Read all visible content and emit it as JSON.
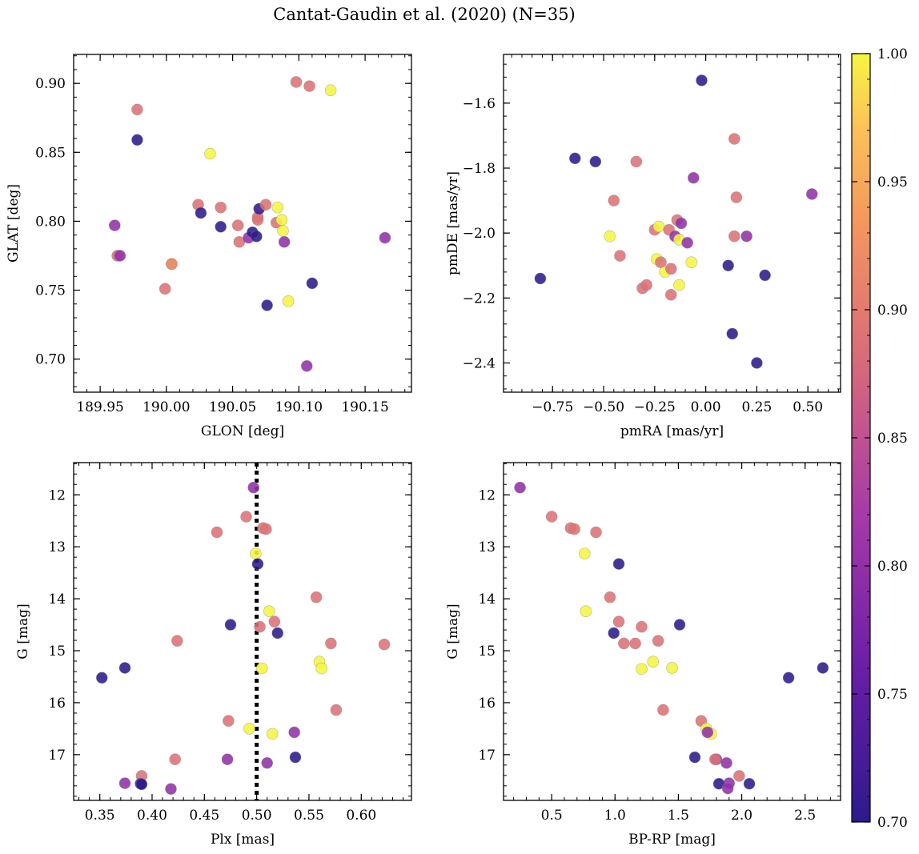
{
  "figure": {
    "title": "Cantat-Gaudin et al. (2020) (N=35)"
  },
  "colorbar": {
    "range": [
      0.7,
      1.0
    ],
    "ticks": [
      0.7,
      0.75,
      0.8,
      0.85,
      0.9,
      0.95,
      1.0
    ],
    "tick_labels": [
      "0.70",
      "0.75",
      "0.80",
      "0.85",
      "0.90",
      "0.95",
      "1.00"
    ],
    "colormap": "plasma"
  },
  "chart_data": [
    {
      "type": "scatter",
      "id": "p1",
      "xlabel": "GLON [deg]",
      "ylabel": "GLAT [deg]",
      "xlim": [
        189.93,
        190.185
      ],
      "ylim": [
        0.676,
        0.921
      ],
      "invert_y": false,
      "xticks": [
        189.95,
        190.0,
        190.05,
        190.1,
        190.15
      ],
      "xtick_labels": [
        "189.95",
        "190.00",
        "190.05",
        "190.10",
        "190.15"
      ],
      "yticks": [
        0.7,
        0.75,
        0.8,
        0.85,
        0.9
      ],
      "ytick_labels": [
        "0.70",
        "0.75",
        "0.80",
        "0.85",
        "0.90"
      ],
      "points": [
        {
          "x": 189.978,
          "y": 0.859,
          "c": 0.7
        },
        {
          "x": 189.978,
          "y": 0.881,
          "c": 0.89
        },
        {
          "x": 189.961,
          "y": 0.797,
          "c": 0.8
        },
        {
          "x": 189.963,
          "y": 0.775,
          "c": 0.88
        },
        {
          "x": 189.965,
          "y": 0.775,
          "c": 0.8
        },
        {
          "x": 189.999,
          "y": 0.751,
          "c": 0.89
        },
        {
          "x": 190.004,
          "y": 0.769,
          "c": 0.99
        },
        {
          "x": 190.004,
          "y": 0.769,
          "c": 0.91
        },
        {
          "x": 190.024,
          "y": 0.812,
          "c": 0.89
        },
        {
          "x": 190.026,
          "y": 0.806,
          "c": 0.7
        },
        {
          "x": 190.033,
          "y": 0.849,
          "c": 1.0
        },
        {
          "x": 190.041,
          "y": 0.796,
          "c": 0.7
        },
        {
          "x": 190.041,
          "y": 0.81,
          "c": 0.89
        },
        {
          "x": 190.054,
          "y": 0.797,
          "c": 0.89
        },
        {
          "x": 190.055,
          "y": 0.785,
          "c": 0.89
        },
        {
          "x": 190.062,
          "y": 0.788,
          "c": 0.8
        },
        {
          "x": 190.065,
          "y": 0.792,
          "c": 0.7
        },
        {
          "x": 190.068,
          "y": 0.789,
          "c": 0.7
        },
        {
          "x": 190.069,
          "y": 0.803,
          "c": 0.89
        },
        {
          "x": 190.069,
          "y": 0.801,
          "c": 0.89
        },
        {
          "x": 190.07,
          "y": 0.809,
          "c": 0.7
        },
        {
          "x": 190.075,
          "y": 0.812,
          "c": 0.89
        },
        {
          "x": 190.076,
          "y": 0.739,
          "c": 0.7
        },
        {
          "x": 190.083,
          "y": 0.799,
          "c": 0.89
        },
        {
          "x": 190.084,
          "y": 0.81,
          "c": 1.0
        },
        {
          "x": 190.087,
          "y": 0.801,
          "c": 1.0
        },
        {
          "x": 190.088,
          "y": 0.793,
          "c": 1.0
        },
        {
          "x": 190.089,
          "y": 0.785,
          "c": 0.8
        },
        {
          "x": 190.092,
          "y": 0.742,
          "c": 1.0
        },
        {
          "x": 190.098,
          "y": 0.901,
          "c": 0.89
        },
        {
          "x": 190.106,
          "y": 0.695,
          "c": 0.8
        },
        {
          "x": 190.108,
          "y": 0.898,
          "c": 0.89
        },
        {
          "x": 190.11,
          "y": 0.755,
          "c": 0.7
        },
        {
          "x": 190.124,
          "y": 0.895,
          "c": 1.0
        },
        {
          "x": 190.165,
          "y": 0.788,
          "c": 0.8
        }
      ]
    },
    {
      "type": "scatter",
      "id": "p2",
      "xlabel": "pmRA [mas/yr]",
      "ylabel": "pmDE [mas/yr]",
      "xlim": [
        -0.99,
        0.66
      ],
      "ylim": [
        -2.49,
        -1.45
      ],
      "invert_y": false,
      "xticks": [
        -0.75,
        -0.5,
        -0.25,
        0.0,
        0.25,
        0.5
      ],
      "xtick_labels": [
        "−0.75",
        "−0.50",
        "−0.25",
        "0.00",
        "0.25",
        "0.50"
      ],
      "yticks": [
        -2.4,
        -2.2,
        -2.0,
        -1.8,
        -1.6
      ],
      "ytick_labels": [
        "−2.4",
        "−2.2",
        "−2.0",
        "−1.8",
        "−1.6"
      ],
      "points": [
        {
          "x": -0.02,
          "y": -1.53,
          "c": 0.7
        },
        {
          "x": -0.64,
          "y": -1.77,
          "c": 0.7
        },
        {
          "x": -0.54,
          "y": -1.78,
          "c": 0.7
        },
        {
          "x": -0.34,
          "y": -1.78,
          "c": 0.89
        },
        {
          "x": 0.14,
          "y": -1.71,
          "c": 0.89
        },
        {
          "x": -0.06,
          "y": -1.83,
          "c": 0.8
        },
        {
          "x": 0.15,
          "y": -1.89,
          "c": 0.89
        },
        {
          "x": 0.52,
          "y": -1.88,
          "c": 0.8
        },
        {
          "x": -0.45,
          "y": -1.9,
          "c": 0.89
        },
        {
          "x": -0.81,
          "y": -2.14,
          "c": 0.7
        },
        {
          "x": -0.47,
          "y": -2.01,
          "c": 1.0
        },
        {
          "x": -0.42,
          "y": -2.07,
          "c": 0.89
        },
        {
          "x": -0.25,
          "y": -1.99,
          "c": 0.89
        },
        {
          "x": -0.23,
          "y": -1.98,
          "c": 1.0
        },
        {
          "x": -0.18,
          "y": -1.99,
          "c": 0.89
        },
        {
          "x": -0.14,
          "y": -1.96,
          "c": 0.89
        },
        {
          "x": -0.12,
          "y": -1.97,
          "c": 0.8
        },
        {
          "x": -0.15,
          "y": -2.01,
          "c": 0.8
        },
        {
          "x": -0.13,
          "y": -2.02,
          "c": 1.0
        },
        {
          "x": -0.09,
          "y": -2.03,
          "c": 0.8
        },
        {
          "x": 0.14,
          "y": -2.01,
          "c": 0.89
        },
        {
          "x": 0.2,
          "y": -2.01,
          "c": 0.8
        },
        {
          "x": -0.24,
          "y": -2.08,
          "c": 1.0
        },
        {
          "x": -0.22,
          "y": -2.09,
          "c": 0.89
        },
        {
          "x": -0.2,
          "y": -2.12,
          "c": 1.0
        },
        {
          "x": -0.17,
          "y": -2.11,
          "c": 0.89
        },
        {
          "x": -0.07,
          "y": -2.09,
          "c": 1.0
        },
        {
          "x": 0.11,
          "y": -2.1,
          "c": 0.7
        },
        {
          "x": 0.29,
          "y": -2.13,
          "c": 0.7
        },
        {
          "x": -0.31,
          "y": -2.17,
          "c": 0.89
        },
        {
          "x": -0.29,
          "y": -2.16,
          "c": 0.89
        },
        {
          "x": -0.13,
          "y": -2.16,
          "c": 1.0
        },
        {
          "x": -0.17,
          "y": -2.19,
          "c": 0.89
        },
        {
          "x": 0.13,
          "y": -2.31,
          "c": 0.7
        },
        {
          "x": 0.25,
          "y": -2.4,
          "c": 0.7
        }
      ]
    },
    {
      "type": "scatter",
      "id": "p3",
      "xlabel": "Plx [mas]",
      "ylabel": "G [mag]",
      "xlim": [
        0.325,
        0.648
      ],
      "ylim": [
        11.38,
        17.88
      ],
      "invert_y": true,
      "vline": {
        "x": 0.5,
        "style": "dotted"
      },
      "xticks": [
        0.35,
        0.4,
        0.45,
        0.5,
        0.55,
        0.6
      ],
      "xtick_labels": [
        "0.35",
        "0.40",
        "0.45",
        "0.50",
        "0.55",
        "0.60"
      ],
      "yticks": [
        12,
        13,
        14,
        15,
        16,
        17
      ],
      "ytick_labels": [
        "12",
        "13",
        "14",
        "15",
        "16",
        "17"
      ],
      "points": [
        {
          "x": 0.497,
          "y": 11.86,
          "c": 0.8
        },
        {
          "x": 0.49,
          "y": 12.42,
          "c": 0.89
        },
        {
          "x": 0.462,
          "y": 12.72,
          "c": 0.89
        },
        {
          "x": 0.506,
          "y": 12.64,
          "c": 0.89
        },
        {
          "x": 0.509,
          "y": 12.66,
          "c": 0.89
        },
        {
          "x": 0.499,
          "y": 13.13,
          "c": 1.0
        },
        {
          "x": 0.501,
          "y": 13.33,
          "c": 0.7
        },
        {
          "x": 0.557,
          "y": 13.97,
          "c": 0.89
        },
        {
          "x": 0.512,
          "y": 14.24,
          "c": 1.0
        },
        {
          "x": 0.517,
          "y": 14.44,
          "c": 0.89
        },
        {
          "x": 0.475,
          "y": 14.5,
          "c": 0.7
        },
        {
          "x": 0.503,
          "y": 14.54,
          "c": 0.89
        },
        {
          "x": 0.52,
          "y": 14.66,
          "c": 0.7
        },
        {
          "x": 0.424,
          "y": 14.81,
          "c": 0.89
        },
        {
          "x": 0.571,
          "y": 14.86,
          "c": 0.89
        },
        {
          "x": 0.622,
          "y": 14.88,
          "c": 0.89
        },
        {
          "x": 0.56,
          "y": 15.21,
          "c": 1.0
        },
        {
          "x": 0.562,
          "y": 15.34,
          "c": 1.0
        },
        {
          "x": 0.505,
          "y": 15.34,
          "c": 1.0
        },
        {
          "x": 0.374,
          "y": 15.33,
          "c": 0.7
        },
        {
          "x": 0.352,
          "y": 15.52,
          "c": 0.7
        },
        {
          "x": 0.576,
          "y": 16.14,
          "c": 0.89
        },
        {
          "x": 0.473,
          "y": 16.35,
          "c": 0.89
        },
        {
          "x": 0.493,
          "y": 16.5,
          "c": 1.0
        },
        {
          "x": 0.515,
          "y": 16.6,
          "c": 1.0
        },
        {
          "x": 0.536,
          "y": 16.57,
          "c": 0.8
        },
        {
          "x": 0.537,
          "y": 17.05,
          "c": 0.7
        },
        {
          "x": 0.472,
          "y": 17.09,
          "c": 0.8
        },
        {
          "x": 0.422,
          "y": 17.09,
          "c": 0.89
        },
        {
          "x": 0.51,
          "y": 17.16,
          "c": 0.8
        },
        {
          "x": 0.39,
          "y": 17.41,
          "c": 0.89
        },
        {
          "x": 0.374,
          "y": 17.55,
          "c": 0.8
        },
        {
          "x": 0.389,
          "y": 17.56,
          "c": 0.7
        },
        {
          "x": 0.39,
          "y": 17.57,
          "c": 0.7
        },
        {
          "x": 0.418,
          "y": 17.66,
          "c": 0.8
        }
      ]
    },
    {
      "type": "scatter",
      "id": "p4",
      "xlabel": "BP-RP [mag]",
      "ylabel": "G [mag]",
      "xlim": [
        0.12,
        2.78
      ],
      "ylim": [
        11.38,
        17.88
      ],
      "invert_y": true,
      "xticks": [
        0.5,
        1.0,
        1.5,
        2.0,
        2.5
      ],
      "xtick_labels": [
        "0.5",
        "1.0",
        "1.5",
        "2.0",
        "2.5"
      ],
      "yticks": [
        12,
        13,
        14,
        15,
        16,
        17
      ],
      "ytick_labels": [
        "12",
        "13",
        "14",
        "15",
        "16",
        "17"
      ],
      "points": [
        {
          "x": 0.25,
          "y": 11.86,
          "c": 0.8
        },
        {
          "x": 0.5,
          "y": 12.42,
          "c": 0.89
        },
        {
          "x": 0.65,
          "y": 12.64,
          "c": 0.89
        },
        {
          "x": 0.68,
          "y": 12.66,
          "c": 0.89
        },
        {
          "x": 0.85,
          "y": 12.72,
          "c": 0.89
        },
        {
          "x": 0.76,
          "y": 13.13,
          "c": 1.0
        },
        {
          "x": 1.03,
          "y": 13.33,
          "c": 0.7
        },
        {
          "x": 0.96,
          "y": 13.97,
          "c": 0.89
        },
        {
          "x": 0.77,
          "y": 14.24,
          "c": 1.0
        },
        {
          "x": 1.03,
          "y": 14.44,
          "c": 0.89
        },
        {
          "x": 1.51,
          "y": 14.5,
          "c": 0.7
        },
        {
          "x": 1.21,
          "y": 14.54,
          "c": 0.89
        },
        {
          "x": 0.99,
          "y": 14.66,
          "c": 0.7
        },
        {
          "x": 1.34,
          "y": 14.81,
          "c": 0.89
        },
        {
          "x": 1.07,
          "y": 14.86,
          "c": 0.89
        },
        {
          "x": 1.16,
          "y": 14.86,
          "c": 0.89
        },
        {
          "x": 1.3,
          "y": 15.21,
          "c": 1.0
        },
        {
          "x": 1.45,
          "y": 15.33,
          "c": 1.0
        },
        {
          "x": 1.21,
          "y": 15.35,
          "c": 1.0
        },
        {
          "x": 2.64,
          "y": 15.33,
          "c": 0.7
        },
        {
          "x": 2.37,
          "y": 15.52,
          "c": 0.7
        },
        {
          "x": 1.38,
          "y": 16.14,
          "c": 0.89
        },
        {
          "x": 1.68,
          "y": 16.35,
          "c": 0.89
        },
        {
          "x": 1.72,
          "y": 16.5,
          "c": 1.0
        },
        {
          "x": 1.76,
          "y": 16.6,
          "c": 1.0
        },
        {
          "x": 1.73,
          "y": 16.57,
          "c": 0.8
        },
        {
          "x": 1.63,
          "y": 17.05,
          "c": 0.7
        },
        {
          "x": 1.8,
          "y": 17.09,
          "c": 0.8
        },
        {
          "x": 1.79,
          "y": 17.09,
          "c": 0.89
        },
        {
          "x": 1.88,
          "y": 17.16,
          "c": 0.8
        },
        {
          "x": 1.98,
          "y": 17.41,
          "c": 0.89
        },
        {
          "x": 1.9,
          "y": 17.55,
          "c": 0.8
        },
        {
          "x": 1.82,
          "y": 17.56,
          "c": 0.7
        },
        {
          "x": 2.06,
          "y": 17.56,
          "c": 0.7
        },
        {
          "x": 1.89,
          "y": 17.65,
          "c": 0.8
        }
      ]
    }
  ]
}
